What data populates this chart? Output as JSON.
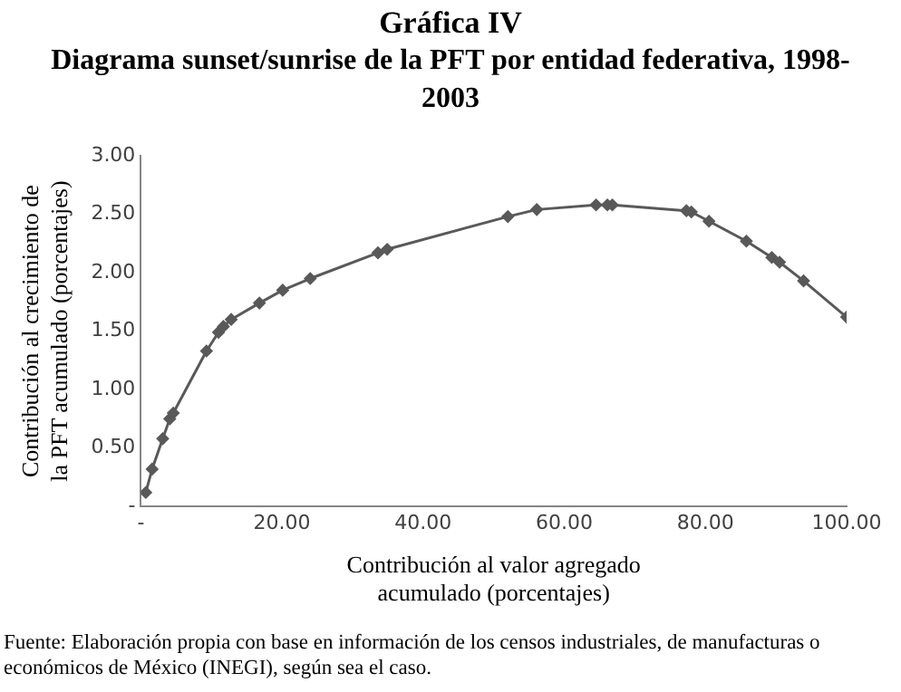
{
  "chart_data": {
    "type": "line",
    "title": "Gráfica IV",
    "subtitle": "Diagrama sunset/sunrise de la PFT por entidad federativa, 1998-2003",
    "xlabel": "Contribución al valor agregado acumulado (porcentajes)",
    "ylabel": "Contribución al crecimiento de la PFT acumulado (porcentajes)",
    "annotations": [
      "Fuente: Elaboración propia con base en información de los censos industriales, de manufacturas o económicos de México (INEGI), según sea el caso."
    ],
    "series": [
      {
        "color": "#595959",
        "x": [
          0.7,
          1.6,
          3.1,
          4.1,
          4.6,
          9.3,
          11.0,
          11.7,
          12.8,
          16.8,
          20.1,
          24.0,
          33.6,
          34.9,
          52.0,
          56.1,
          64.5,
          66.1,
          66.8,
          77.3,
          78.0,
          80.5,
          85.8,
          89.4,
          90.5,
          93.9,
          100
        ],
        "values": [
          0.12,
          0.32,
          0.58,
          0.75,
          0.8,
          1.33,
          1.49,
          1.54,
          1.6,
          1.74,
          1.85,
          1.95,
          2.17,
          2.2,
          2.48,
          2.54,
          2.58,
          2.58,
          2.58,
          2.53,
          2.52,
          2.44,
          2.27,
          2.13,
          2.09,
          1.93,
          1.62
        ]
      }
    ],
    "xlim": [
      0,
      100
    ],
    "xticks": [
      {
        "value": 0,
        "label": "-"
      },
      {
        "value": 20,
        "label": "20.00"
      },
      {
        "value": 40,
        "label": "40.00"
      },
      {
        "value": 60,
        "label": "60.00"
      },
      {
        "value": 80,
        "label": "80.00"
      },
      {
        "value": 100,
        "label": "100.00"
      }
    ],
    "ylim": [
      0,
      3
    ],
    "yticks": [
      {
        "value": 0,
        "label": "-"
      },
      {
        "value": 0.5,
        "label": "0.50"
      },
      {
        "value": 1,
        "label": "1.00"
      },
      {
        "value": 1.5,
        "label": "1.50"
      },
      {
        "value": 2,
        "label": "2.00"
      },
      {
        "value": 2.5,
        "label": "2.50"
      },
      {
        "value": 3,
        "label": "3.00"
      }
    ],
    "grid": false,
    "legend": false,
    "marker": "diamond",
    "line_style": "solid"
  }
}
